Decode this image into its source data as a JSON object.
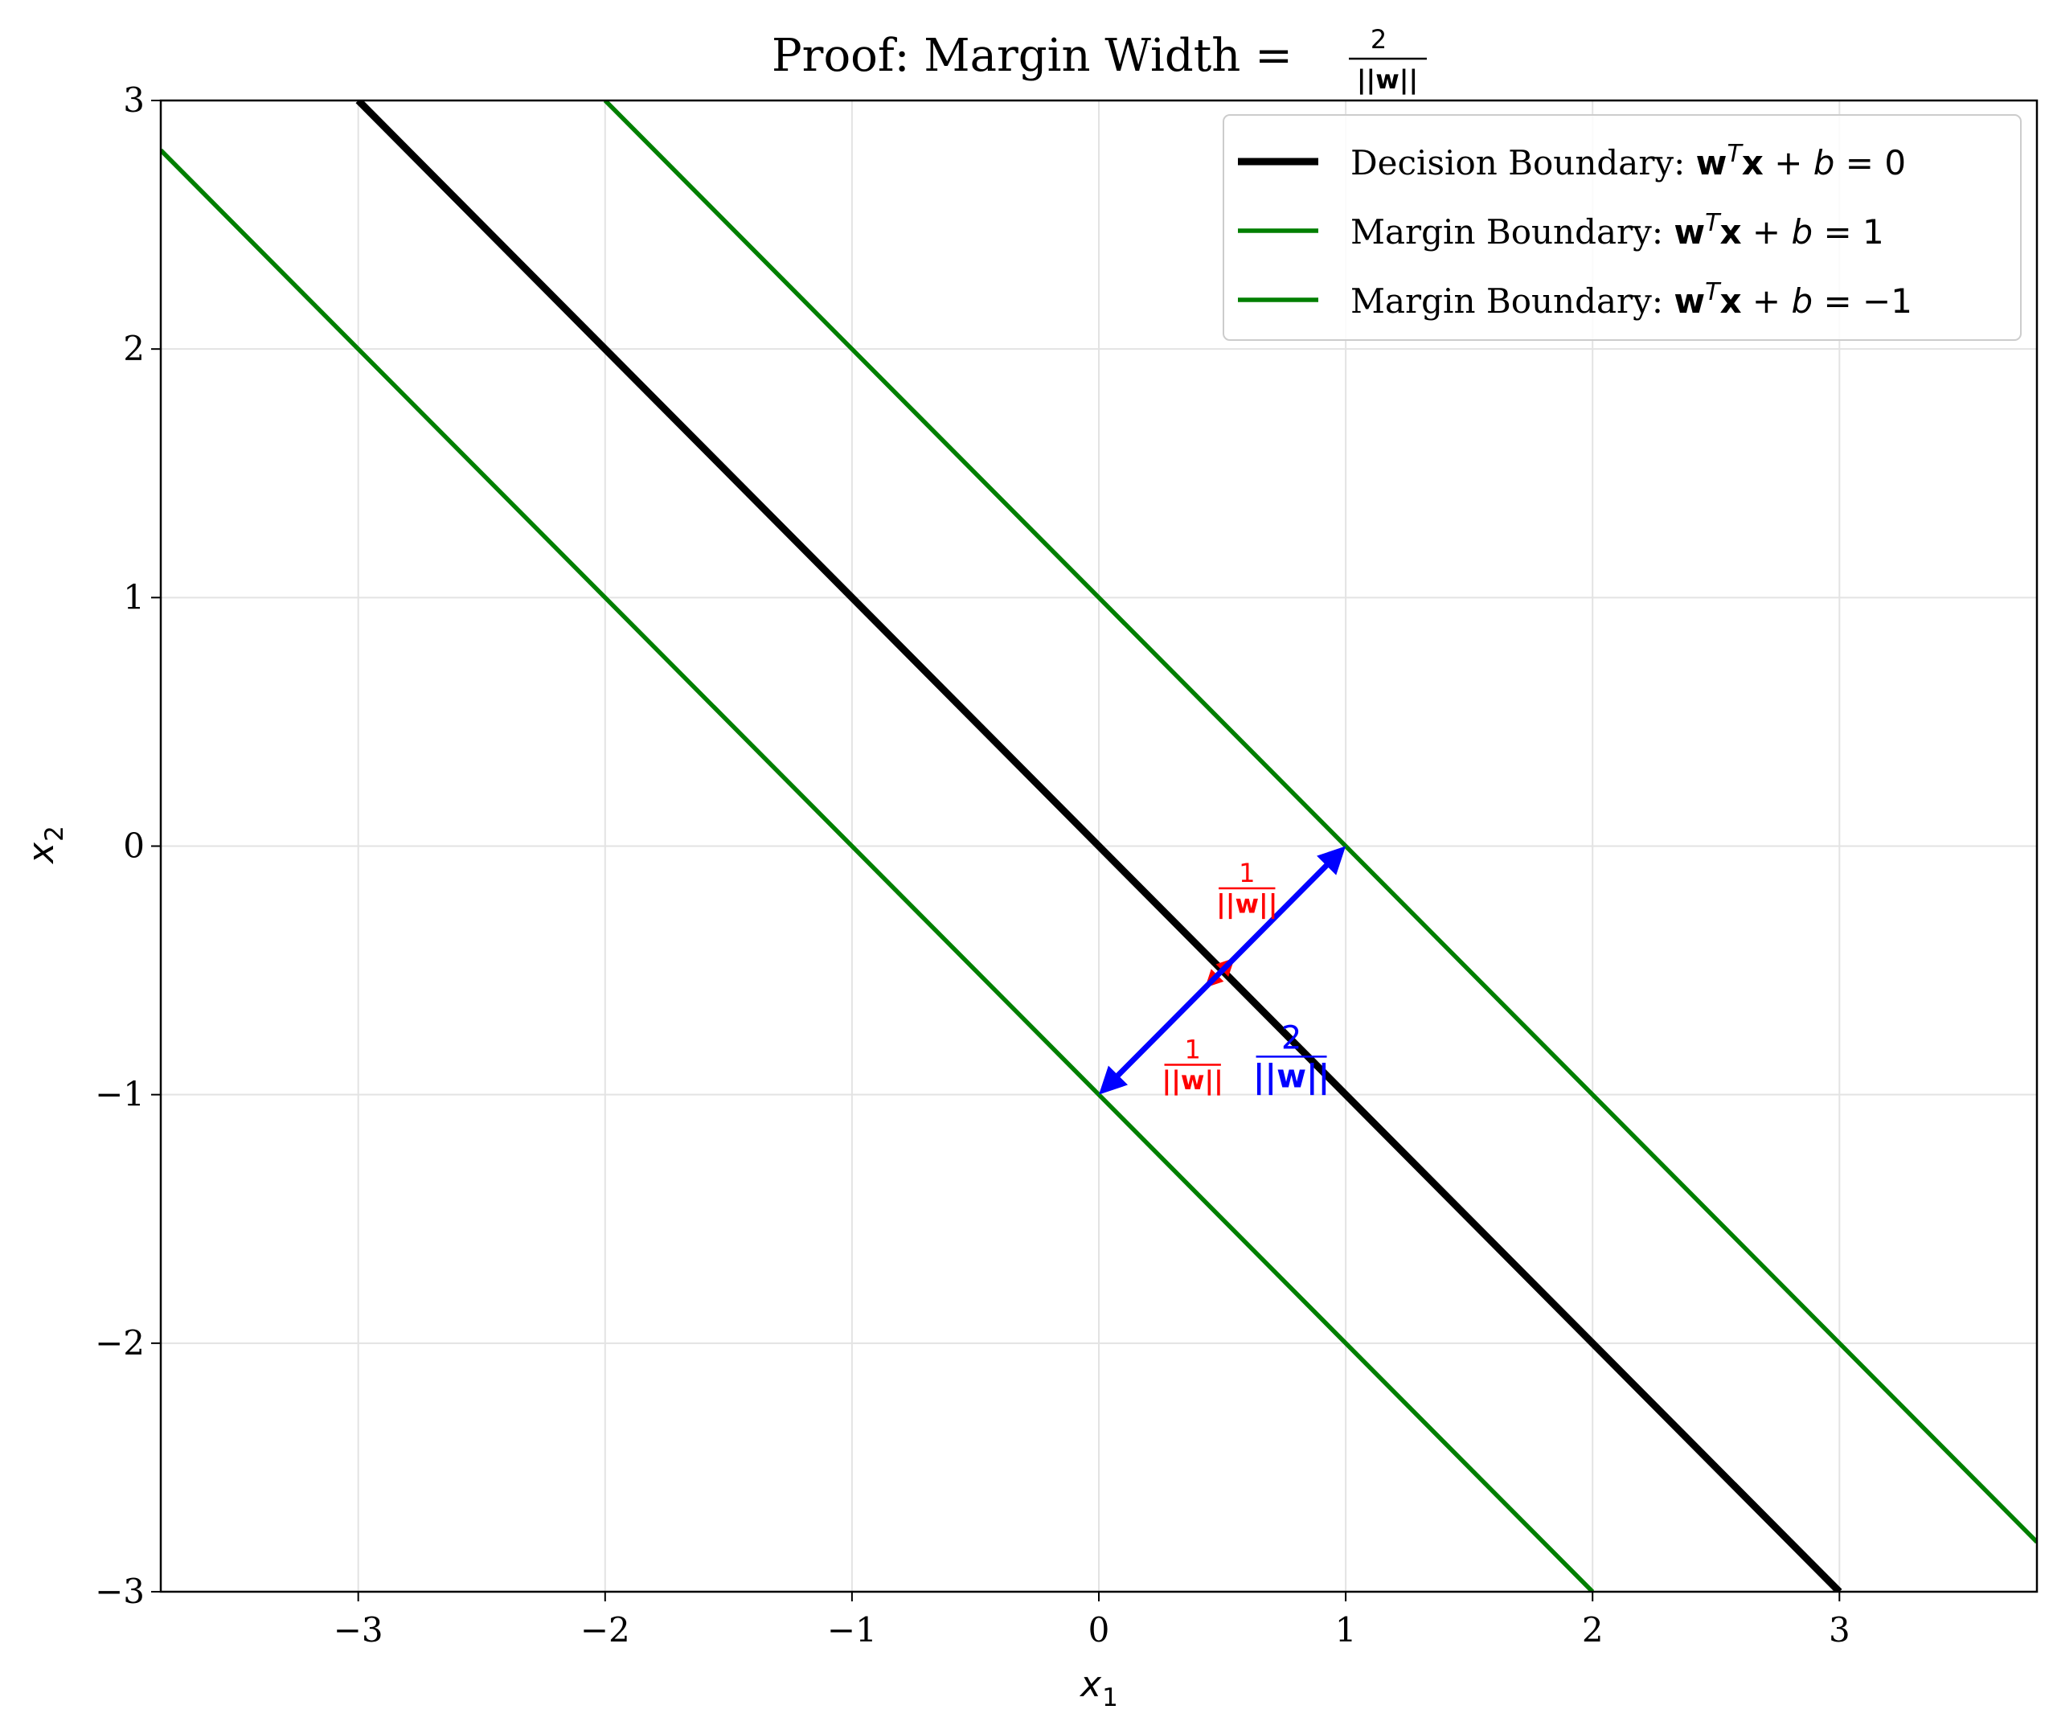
{
  "chart_data": {
    "type": "line",
    "title": {
      "prefix": "Proof: Margin Width = ",
      "frac_num": "2",
      "frac_den": "||w||"
    },
    "xlabel": {
      "base": "x",
      "sub": "1"
    },
    "ylabel": {
      "base": "x",
      "sub": "2"
    },
    "xlim": [
      -3.8,
      3.8
    ],
    "ylim": [
      -3,
      3
    ],
    "xticks": [
      -3,
      -2,
      -1,
      0,
      1,
      2,
      3
    ],
    "yticks": [
      -3,
      -2,
      -1,
      0,
      1,
      2,
      3
    ],
    "xtick_labels": [
      "−3",
      "−2",
      "−1",
      "0",
      "1",
      "2",
      "3"
    ],
    "ytick_labels": [
      "−3",
      "−2",
      "−1",
      "0",
      "1",
      "2",
      "3"
    ],
    "grid": true,
    "legend_position": "top-right",
    "series": [
      {
        "name": "Decision Boundary: wTx+b=0",
        "legend_text": "Decision Boundary: ",
        "rhs": "0",
        "color": "#000000",
        "style": "thick",
        "x": [
          -3,
          3
        ],
        "y": [
          3,
          -3
        ]
      },
      {
        "name": "Margin Boundary: wTx+b=1",
        "legend_text": "Margin Boundary: ",
        "rhs": "1",
        "color": "#007f00",
        "style": "normal",
        "x": [
          -2,
          3.8
        ],
        "y": [
          3,
          -2.8
        ]
      },
      {
        "name": "Margin Boundary: wTx+b=-1",
        "legend_text": "Margin Boundary: ",
        "rhs": "−1",
        "color": "#007f00",
        "style": "normal",
        "x": [
          -3.8,
          2
        ],
        "y": [
          2.8,
          -3
        ]
      }
    ],
    "annotations": {
      "full_width_arrow": {
        "from": [
          0.5,
          -0.5
        ],
        "to_a": [
          1.0,
          0.0
        ],
        "to_b": [
          0.0,
          -1.0
        ],
        "color": "#0000ff",
        "label_num": "2",
        "label_den": "||w||",
        "label_at": [
          0.78,
          -0.86
        ]
      },
      "half_arrows": [
        {
          "from": [
            0.5,
            -0.5
          ],
          "to": [
            0.55,
            -0.45
          ],
          "color": "#ff0000",
          "label_num": "1",
          "label_den": "||w||",
          "label_at": [
            0.6,
            -0.18
          ]
        },
        {
          "from": [
            0.5,
            -0.5
          ],
          "to": [
            0.43,
            -0.57
          ],
          "color": "#ff0000",
          "label_num": "1",
          "label_den": "||w||",
          "label_at": [
            0.38,
            -0.89
          ]
        }
      ]
    }
  }
}
